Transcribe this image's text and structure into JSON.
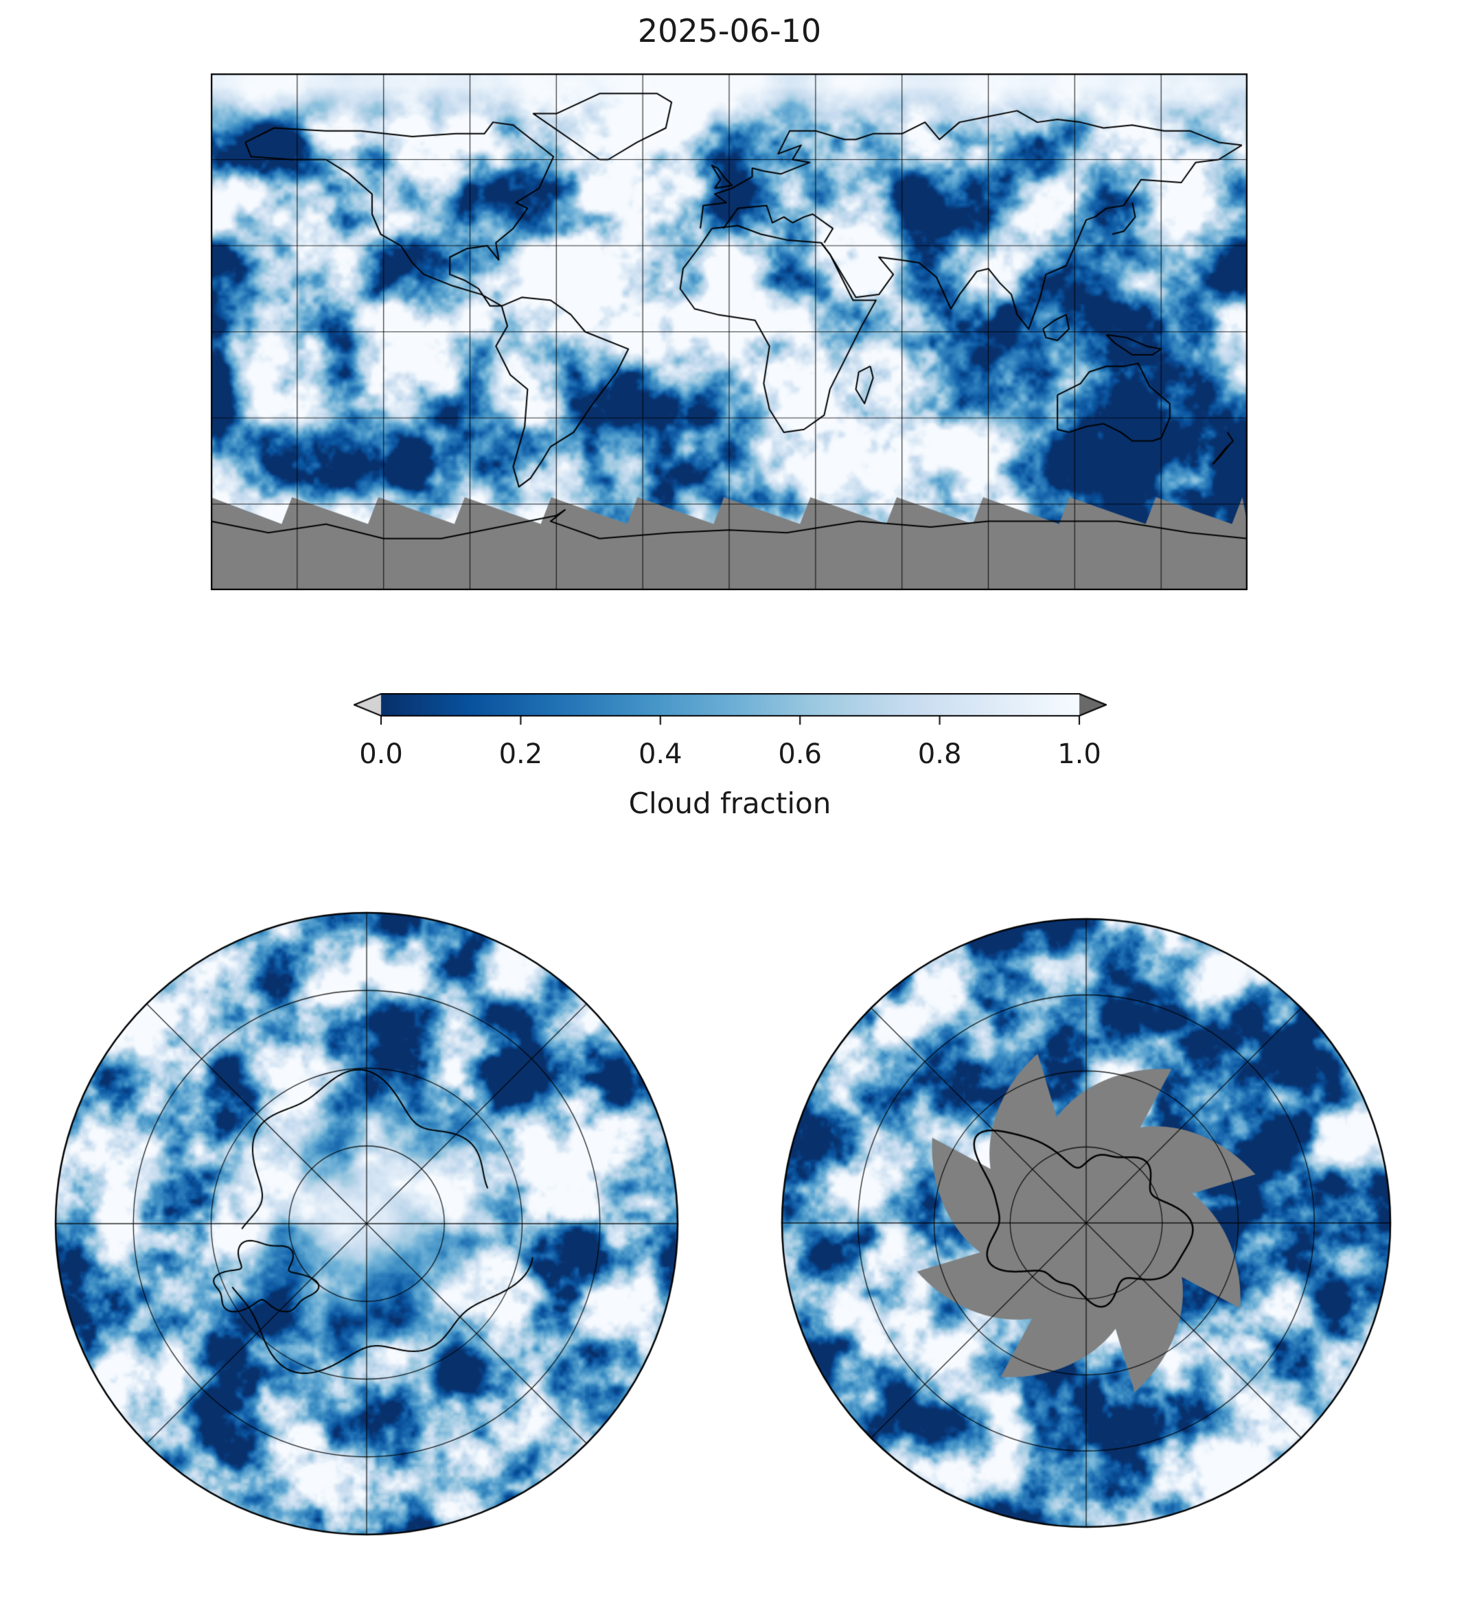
{
  "title": "2025-06-10",
  "chart_data": {
    "type": "heatmap",
    "title": "2025-06-10",
    "variable": "Cloud fraction",
    "value_range": [
      0.0,
      1.0
    ],
    "missing_color": "#808080",
    "colorbar": {
      "label": "Cloud fraction",
      "orientation": "horizontal",
      "extend": "both",
      "ticks": [
        "0.0",
        "0.2",
        "0.4",
        "0.6",
        "0.8",
        "1.0"
      ],
      "tick_values": [
        0,
        0.2,
        0.4,
        0.6,
        0.8,
        1.0
      ],
      "colormap_name": "Blues_r",
      "under_color": "#d3d3d3",
      "over_color": "#696969",
      "colormap_stops": [
        {
          "v": 0.0,
          "c": "#08306b"
        },
        {
          "v": 0.125,
          "c": "#08519c"
        },
        {
          "v": 0.25,
          "c": "#2171b5"
        },
        {
          "v": 0.375,
          "c": "#4292c6"
        },
        {
          "v": 0.5,
          "c": "#6baed6"
        },
        {
          "v": 0.625,
          "c": "#9ecae1"
        },
        {
          "v": 0.75,
          "c": "#c6dbef"
        },
        {
          "v": 0.875,
          "c": "#deebf7"
        },
        {
          "v": 1.0,
          "c": "#f7fbff"
        }
      ]
    },
    "panels": [
      {
        "id": "global",
        "projection": "equirectangular",
        "gridline_spacing_deg": 30,
        "missing_region": "gray swath gaps south of ~60S"
      },
      {
        "id": "north-polar",
        "projection": "north polar stereographic",
        "gridlines": "latitude circles + 45 deg meridians"
      },
      {
        "id": "south-polar",
        "projection": "south polar stereographic",
        "missing_region": "gray polar-gap pinwheel over Antarctica"
      }
    ]
  }
}
